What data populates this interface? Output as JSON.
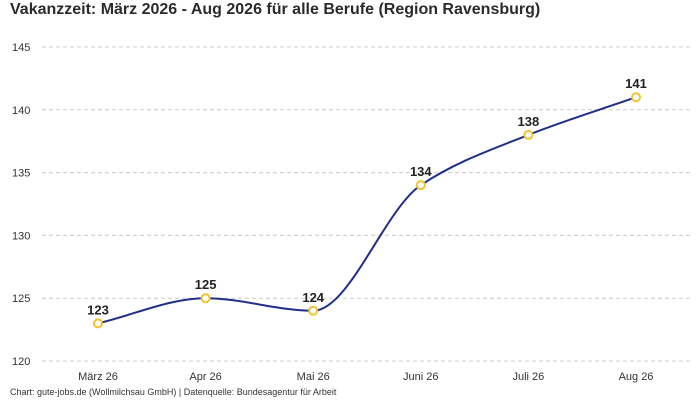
{
  "title": "Vakanzzeit: März 2026 - Aug 2026 für alle Berufe (Region Ravensburg)",
  "footer": "Chart: gute-jobs.de (Wollmilchsau GmbH) | Datenquelle: Bundesagentur für Arbeit",
  "chart_data": {
    "type": "line",
    "title": "Vakanzzeit: März 2026 - Aug 2026 für alle Berufe (Region Ravensburg)",
    "xlabel": "",
    "ylabel": "",
    "categories": [
      "März 26",
      "Apr 26",
      "Mai 26",
      "Juni 26",
      "Juli 26",
      "Aug 26"
    ],
    "series": [
      {
        "values": [
          123,
          125,
          124,
          134,
          138,
          141
        ]
      }
    ],
    "ylim": [
      120,
      145
    ],
    "yticks": [
      120,
      125,
      130,
      135,
      140,
      145
    ],
    "grid": true,
    "legend": "none",
    "colors": {
      "line": "#1f2f8a",
      "marker": "#f2c230",
      "grid": "#cccccc"
    }
  }
}
